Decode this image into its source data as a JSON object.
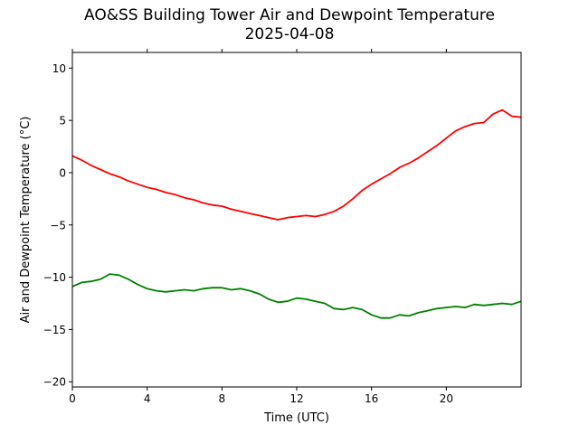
{
  "chart_data": {
    "type": "line",
    "title": "AO&SS Building Tower Air and Dewpoint Temperature",
    "subtitle": "2025-04-08",
    "xlabel": "Time (UTC)",
    "ylabel": "Air and Dewpoint Temperature (°C)",
    "xlim": [
      0,
      24
    ],
    "ylim": [
      -20.5,
      11.5
    ],
    "xticks": [
      0,
      4,
      8,
      12,
      16,
      20
    ],
    "yticks": [
      -20,
      -15,
      -10,
      -5,
      0,
      5,
      10
    ],
    "grid": false,
    "legend": "none",
    "series": [
      {
        "color": "#ff0000",
        "x": [
          0,
          0.5,
          1,
          1.5,
          2,
          2.5,
          3,
          3.5,
          4,
          4.5,
          5,
          5.5,
          6,
          6.5,
          7,
          7.5,
          8,
          8.5,
          9,
          9.5,
          10,
          10.5,
          11,
          11.5,
          12,
          12.5,
          13,
          13.5,
          14,
          14.5,
          15,
          15.5,
          16,
          16.5,
          17,
          17.5,
          18,
          18.5,
          19,
          19.5,
          20,
          20.5,
          21,
          21.5,
          22,
          22.5,
          23,
          23.5,
          24
        ],
        "values": [
          1.6,
          1.2,
          0.7,
          0.3,
          -0.1,
          -0.4,
          -0.8,
          -1.1,
          -1.4,
          -1.6,
          -1.9,
          -2.1,
          -2.4,
          -2.6,
          -2.9,
          -3.1,
          -3.2,
          -3.5,
          -3.7,
          -3.9,
          -4.1,
          -4.3,
          -4.5,
          -4.3,
          -4.2,
          -4.1,
          -4.2,
          -4.0,
          -3.7,
          -3.2,
          -2.5,
          -1.7,
          -1.1,
          -0.6,
          -0.1,
          0.5,
          0.9,
          1.4,
          2.0,
          2.6,
          3.3,
          4.0,
          4.4,
          4.7,
          4.8,
          5.6,
          6.0,
          5.4,
          5.3
        ]
      },
      {
        "color": "#008000",
        "x": [
          0,
          0.5,
          1,
          1.5,
          2,
          2.5,
          3,
          3.5,
          4,
          4.5,
          5,
          5.5,
          6,
          6.5,
          7,
          7.5,
          8,
          8.5,
          9,
          9.5,
          10,
          10.5,
          11,
          11.5,
          12,
          12.5,
          13,
          13.5,
          14,
          14.5,
          15,
          15.5,
          16,
          16.5,
          17,
          17.5,
          18,
          18.5,
          19,
          19.5,
          20,
          20.5,
          21,
          21.5,
          22,
          22.5,
          23,
          23.5,
          24
        ],
        "values": [
          -10.9,
          -10.5,
          -10.4,
          -10.2,
          -9.7,
          -9.8,
          -10.2,
          -10.7,
          -11.1,
          -11.3,
          -11.4,
          -11.3,
          -11.2,
          -11.3,
          -11.1,
          -11.0,
          -11.0,
          -11.2,
          -11.1,
          -11.3,
          -11.6,
          -12.1,
          -12.4,
          -12.3,
          -12.0,
          -12.1,
          -12.3,
          -12.5,
          -13.0,
          -13.1,
          -12.9,
          -13.1,
          -13.6,
          -13.9,
          -13.9,
          -13.6,
          -13.7,
          -13.4,
          -13.2,
          -13.0,
          -12.9,
          -12.8,
          -12.9,
          -12.6,
          -12.7,
          -12.6,
          -12.5,
          -12.6,
          -12.3
        ]
      }
    ]
  }
}
